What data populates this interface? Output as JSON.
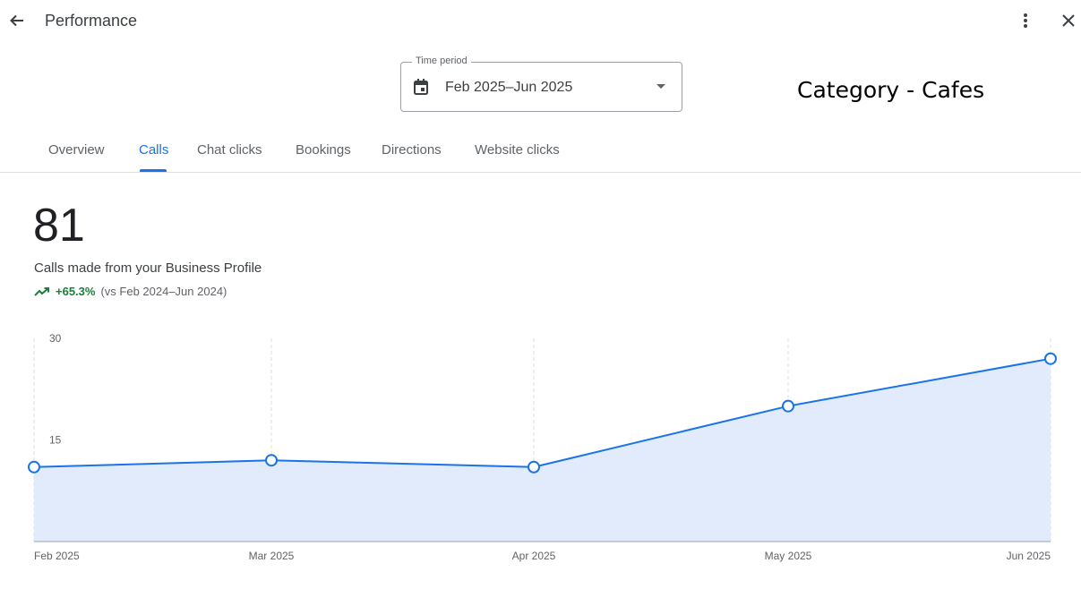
{
  "header": {
    "title": "Performance",
    "back_icon": "arrow-back-icon",
    "more_icon": "more-vert-icon",
    "close_icon": "close-icon"
  },
  "time_period": {
    "label": "Time period",
    "value": "Feb 2025–Jun 2025",
    "icon": "calendar-icon"
  },
  "category_note": "Category - Cafes",
  "tabs": [
    {
      "label": "Overview",
      "active": false
    },
    {
      "label": "Calls",
      "active": true
    },
    {
      "label": "Chat clicks",
      "active": false
    },
    {
      "label": "Bookings",
      "active": false
    },
    {
      "label": "Directions",
      "active": false
    },
    {
      "label": "Website clicks",
      "active": false
    }
  ],
  "metric": {
    "value": "81",
    "description": "Calls made from your Business Profile",
    "change": "+65.3%",
    "comparison": "(vs Feb 2024–Jun 2024)",
    "change_color": "#188038"
  },
  "colors": {
    "accent": "#1a73e8",
    "line": "#1a73e8",
    "area_fill": "#e1ebfc"
  },
  "chart_data": {
    "type": "area",
    "categories": [
      "Feb 2025",
      "Mar 2025",
      "Apr 2025",
      "May 2025",
      "Jun 2025"
    ],
    "series": [
      {
        "values": [
          11,
          12,
          11,
          20,
          27
        ]
      }
    ],
    "y_ticks": [
      "15",
      "30"
    ],
    "ylim": [
      0,
      30
    ],
    "grid": "vertical-dashed"
  }
}
